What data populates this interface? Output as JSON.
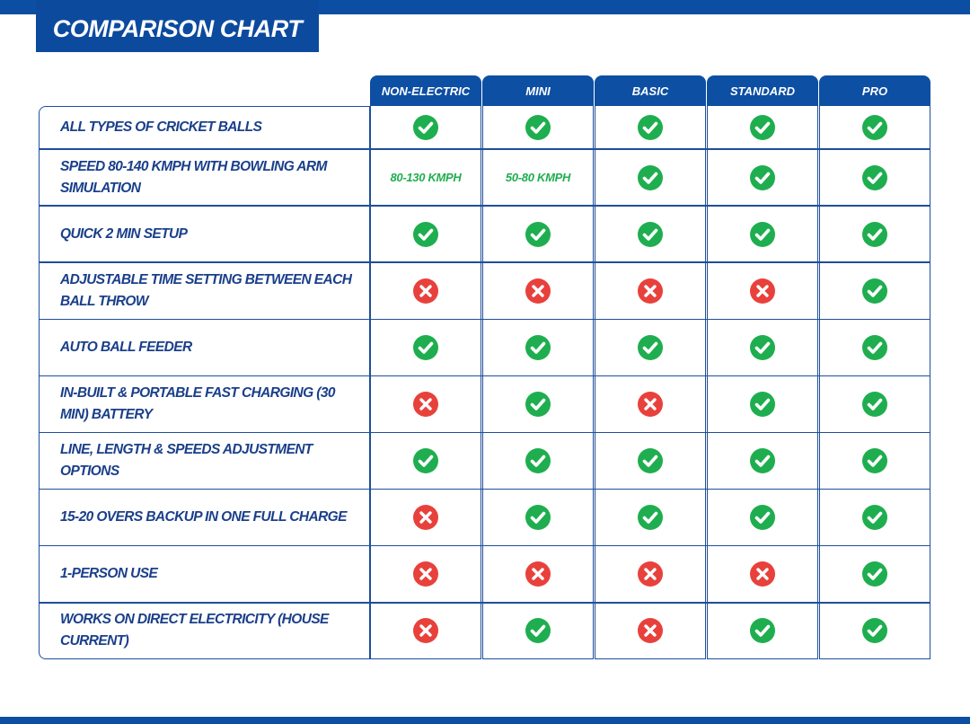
{
  "header": {
    "title": "COMPARISON CHART"
  },
  "table": {
    "columns": [
      "NON-ELECTRIC",
      "MINI",
      "BASIC",
      "STANDARD",
      "PRO"
    ],
    "rows": [
      {
        "feature": "ALL TYPES OF CRICKET BALLS",
        "cells": [
          true,
          true,
          true,
          true,
          true
        ]
      },
      {
        "feature": "SPEED 80-140 KMPH WITH BOWLING ARM SIMULATION",
        "cells": [
          "80-130 KMPH",
          "50-80 KMPH",
          true,
          true,
          true
        ]
      },
      {
        "feature": "QUICK 2 MIN SETUP",
        "cells": [
          true,
          true,
          true,
          true,
          true
        ]
      },
      {
        "feature": "ADJUSTABLE TIME SETTING BETWEEN EACH BALL THROW",
        "cells": [
          false,
          false,
          false,
          false,
          true
        ]
      },
      {
        "feature": "AUTO BALL FEEDER",
        "cells": [
          true,
          true,
          true,
          true,
          true
        ]
      },
      {
        "feature": "IN-BUILT & PORTABLE FAST CHARGING (30 MIN) BATTERY",
        "cells": [
          false,
          true,
          false,
          true,
          true
        ]
      },
      {
        "feature": "LINE, LENGTH & SPEEDS ADJUSTMENT OPTIONS",
        "cells": [
          true,
          true,
          true,
          true,
          true
        ]
      },
      {
        "feature": "15-20 OVERS BACKUP IN ONE FULL CHARGE",
        "cells": [
          false,
          true,
          true,
          true,
          true
        ]
      },
      {
        "feature": "1-PERSON USE",
        "cells": [
          false,
          false,
          false,
          false,
          true
        ]
      },
      {
        "feature": "WORKS ON DIRECT ELECTRICITY (HOUSE CURRENT)",
        "cells": [
          false,
          true,
          false,
          true,
          true
        ]
      }
    ]
  }
}
